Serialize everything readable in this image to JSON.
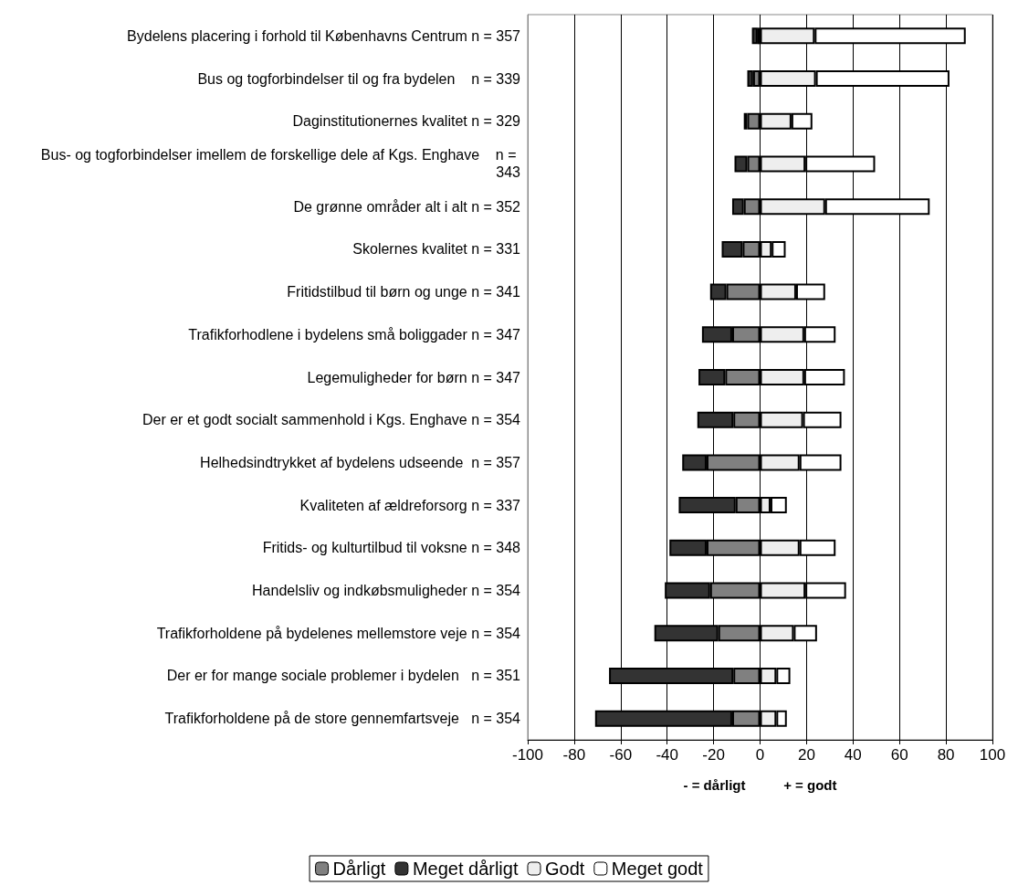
{
  "chart_data": {
    "type": "bar",
    "orientation": "horizontal",
    "stacked": true,
    "xlabel": "- = dårligt          + = godt",
    "categories": [
      "Bydelens placering i forhold til Københavns Centrum n = 357",
      "Bus og togforbindelser til og fra bydelen    n = 339",
      "Daginstitutionernes kvalitet n = 329",
      "Bus- og togforbindelser imellem de forskellige dele af Kgs. Enghave    n = 343",
      "De grønne områder alt i alt n = 352",
      "Skolernes kvalitet n = 331",
      "Fritidstilbud til børn og unge n = 341",
      "Trafikforhodlene i bydelens små boliggader n = 347",
      "Legemuligheder for børn n = 347",
      "Der er et godt socialt sammenhold i Kgs. Enghave n = 354",
      "Helhedsindtrykket af bydelens udseende  n = 357",
      "Kvaliteten af ældreforsorg n = 337",
      "Fritids- og kulturtilbud til voksne n = 348",
      "Handelsliv og indkøbsmuligheder n = 354",
      "Trafikforholdene på bydelenes mellemstore veje n = 354",
      "Der er for mange sociale problemer i bydelen   n = 351",
      "Trafikforholdene på de store gennemfartsveje   n = 354"
    ],
    "series": [
      {
        "name": "Dårligt",
        "color": "#808080",
        "values": [
          -1,
          -3,
          -5.5,
          -5.5,
          -7,
          -7.5,
          -14.5,
          -12,
          -15,
          -11.5,
          -23,
          -10.5,
          -23,
          -21.5,
          -18,
          -11.5,
          -12
        ]
      },
      {
        "name": "Meget dårligt",
        "color": "#333333",
        "values": [
          -2.5,
          -2.5,
          -1.5,
          -5.5,
          -5,
          -9,
          -7,
          -13,
          -11.5,
          -15.5,
          -10.5,
          -24.5,
          -16,
          -19.5,
          -27.5,
          -53.5,
          -59
        ]
      },
      {
        "name": "Godt",
        "color": "#eeeeee",
        "values": [
          23.5,
          24,
          13.5,
          19.5,
          28,
          5,
          15.5,
          19,
          19,
          18.5,
          17,
          4.5,
          17,
          19.5,
          14.5,
          7,
          7
        ]
      },
      {
        "name": "Meget godt",
        "color": "#ffffff",
        "values": [
          65,
          57.5,
          9,
          30,
          45,
          6,
          12.5,
          13.5,
          17.5,
          16.5,
          18,
          7,
          15.5,
          17.5,
          10,
          6,
          4.5
        ]
      }
    ],
    "xlim": [
      -100,
      100
    ],
    "xticks": [
      -100,
      -80,
      -60,
      -40,
      -20,
      0,
      20,
      40,
      60,
      80,
      100
    ],
    "grid": "x",
    "legend": "bottom"
  }
}
